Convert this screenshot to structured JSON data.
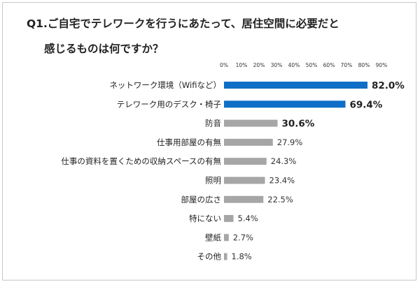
{
  "title_lines": [
    "Q1.ご自宅でテレワークを行うにあたって、居住空間に必要だと",
    "感じるものは何ですか？"
  ],
  "chart_data": {
    "type": "bar",
    "orientation": "horizontal",
    "title": "Q1.ご自宅でテレワークを行うにあたって、居住空間に必要だと感じるものは何ですか？",
    "categories": [
      "ネットワーク環境（Wifiなど）",
      "テレワーク用のデスク・椅子",
      "防音",
      "仕事用部屋の有無",
      "仕事の資料を置くための収納スペースの有無",
      "照明",
      "部屋の広さ",
      "特にない",
      "壁紙",
      "その他"
    ],
    "values": [
      82.0,
      69.4,
      30.6,
      27.9,
      24.3,
      23.4,
      22.5,
      5.4,
      2.7,
      1.8
    ],
    "value_labels": [
      "82.0%",
      "69.4%",
      "30.6%",
      "27.9%",
      "24.3%",
      "23.4%",
      "22.5%",
      "5.4%",
      "2.7%",
      "1.8%"
    ],
    "xlim": [
      0,
      90
    ],
    "x_ticks": [
      "0%",
      "10%",
      "20%",
      "30%",
      "40%",
      "50%",
      "60%",
      "70%",
      "80%",
      "90%"
    ],
    "bar_colors": [
      "#0f6fc6",
      "#0f6fc6",
      "#a6a6a6",
      "#a6a6a6",
      "#a6a6a6",
      "#a6a6a6",
      "#a6a6a6",
      "#a6a6a6",
      "#a6a6a6",
      "#a6a6a6"
    ],
    "emphasized_labels": [
      0,
      1,
      2
    ],
    "grid": false,
    "legend": "none"
  }
}
